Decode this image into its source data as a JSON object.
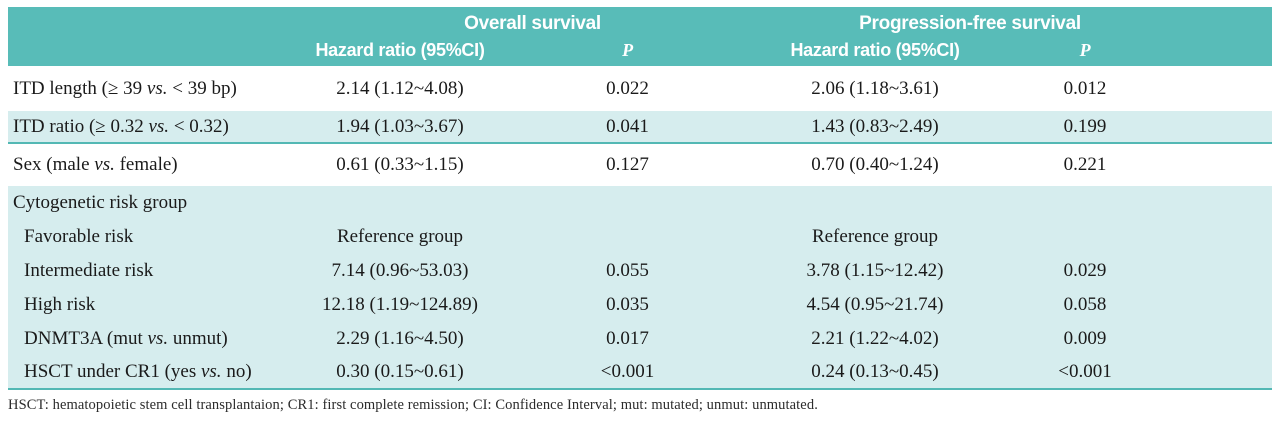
{
  "header": {
    "os_title": "Overall survival",
    "pfs_title": "Progression-free survival",
    "hr_label": "Hazard ratio (95%CI)",
    "p_label": "P"
  },
  "rows": [
    {
      "label": {
        "pre": "ITD length (≥ 39 ",
        "vs": "vs.",
        "post": " < 39 bp)"
      },
      "os_hr": "2.14 (1.12~4.08)",
      "os_p": "0.022",
      "pfs_hr": "2.06 (1.18~3.61)",
      "pfs_p": "0.012"
    },
    {
      "label": {
        "pre": "ITD ratio (≥ 0.32 ",
        "vs": "vs.",
        "post": " < 0.32)"
      },
      "os_hr": "1.94 (1.03~3.67)",
      "os_p": "0.041",
      "pfs_hr": "1.43 (0.83~2.49)",
      "pfs_p": "0.199"
    },
    {
      "label": {
        "pre": "Sex (male ",
        "vs": "vs.",
        "post": " female)"
      },
      "os_hr": "0.61 (0.33~1.15)",
      "os_p": "0.127",
      "pfs_hr": "0.70 (0.40~1.24)",
      "pfs_p": "0.221"
    },
    {
      "label": {
        "pre": "Cytogenetic risk group",
        "vs": "",
        "post": ""
      },
      "os_hr": "",
      "os_p": "",
      "pfs_hr": "",
      "pfs_p": ""
    },
    {
      "label": {
        "pre": "Favorable risk",
        "vs": "",
        "post": ""
      },
      "os_hr": "Reference group",
      "os_p": "",
      "pfs_hr": "Reference group",
      "pfs_p": ""
    },
    {
      "label": {
        "pre": "Intermediate risk",
        "vs": "",
        "post": ""
      },
      "os_hr": "7.14 (0.96~53.03)",
      "os_p": "0.055",
      "pfs_hr": "3.78 (1.15~12.42)",
      "pfs_p": "0.029"
    },
    {
      "label": {
        "pre": "High risk",
        "vs": "",
        "post": ""
      },
      "os_hr": "12.18 (1.19~124.89)",
      "os_p": "0.035",
      "pfs_hr": "4.54 (0.95~21.74)",
      "pfs_p": "0.058"
    },
    {
      "label": {
        "pre": "DNMT3A (mut ",
        "vs": "vs.",
        "post": " unmut)"
      },
      "os_hr": "2.29 (1.16~4.50)",
      "os_p": "0.017",
      "pfs_hr": "2.21 (1.22~4.02)",
      "pfs_p": "0.009"
    },
    {
      "label": {
        "pre": "HSCT under CR1 (yes ",
        "vs": "vs.",
        "post": " no)"
      },
      "os_hr": "0.30 (0.15~0.61)",
      "os_p": "<0.001",
      "pfs_hr": "0.24 (0.13~0.45)",
      "pfs_p": "<0.001"
    }
  ],
  "footnote": "HSCT: hematopoietic stem cell transplantaion; CR1: first complete remission; CI: Confidence Interval; mut: mutated; unmut: unmutated.",
  "colors": {
    "header_bg": "#58bcb8",
    "stripe_bg": "#d6edee",
    "rule": "#53b8b4",
    "header_text": "#ffffff",
    "body_text": "#1a1a1a"
  }
}
